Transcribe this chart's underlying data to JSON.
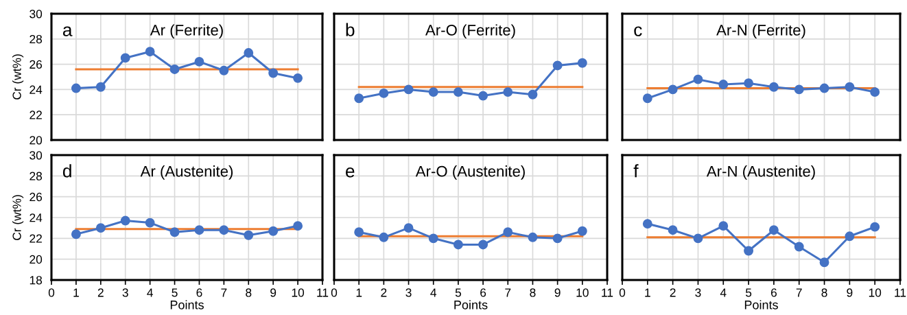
{
  "chart_data": [
    {
      "type": "line",
      "title": "Ar (Ferrite)",
      "annotations": [
        "a"
      ],
      "ylabel": "Cr (wt%)",
      "x": [
        1,
        2,
        3,
        4,
        5,
        6,
        7,
        8,
        9,
        10
      ],
      "xlim": [
        0,
        11
      ],
      "xticks": [
        0,
        1,
        2,
        3,
        4,
        5,
        6,
        7,
        8,
        9,
        10,
        11
      ],
      "ylim": [
        20,
        30
      ],
      "yticks": [
        20,
        22,
        24,
        26,
        28,
        30
      ],
      "tick_labels": "y",
      "grid": true,
      "marker": "circle",
      "line_style": "solid",
      "series": [
        {
          "color": "#4472c4",
          "values": [
            24.1,
            24.2,
            26.5,
            27.0,
            25.6,
            26.2,
            25.5,
            26.9,
            25.3,
            24.9
          ]
        }
      ],
      "ref_lines": [
        {
          "axis": "y",
          "value": 25.6,
          "color": "#ed7d31"
        }
      ]
    },
    {
      "type": "line",
      "title": "Ar-O (Ferrite)",
      "annotations": [
        "b"
      ],
      "x": [
        1,
        2,
        3,
        4,
        5,
        6,
        7,
        8,
        9,
        10
      ],
      "xlim": [
        0,
        11
      ],
      "xticks": [
        0,
        1,
        2,
        3,
        4,
        5,
        6,
        7,
        8,
        9,
        10,
        11
      ],
      "ylim": [
        20,
        30
      ],
      "yticks": [
        20,
        22,
        24,
        26,
        28,
        30
      ],
      "tick_labels": false,
      "grid": true,
      "marker": "circle",
      "line_style": "solid",
      "series": [
        {
          "color": "#4472c4",
          "values": [
            23.3,
            23.7,
            24.0,
            23.8,
            23.8,
            23.5,
            23.8,
            23.6,
            25.9,
            26.1
          ]
        }
      ],
      "ref_lines": [
        {
          "axis": "y",
          "value": 24.2,
          "color": "#ed7d31"
        }
      ]
    },
    {
      "type": "line",
      "title": "Ar-N (Ferrite)",
      "annotations": [
        "c"
      ],
      "x": [
        1,
        2,
        3,
        4,
        5,
        6,
        7,
        8,
        9,
        10
      ],
      "xlim": [
        0,
        11
      ],
      "xticks": [
        0,
        1,
        2,
        3,
        4,
        5,
        6,
        7,
        8,
        9,
        10,
        11
      ],
      "ylim": [
        20,
        30
      ],
      "yticks": [
        20,
        22,
        24,
        26,
        28,
        30
      ],
      "tick_labels": false,
      "grid": true,
      "marker": "circle",
      "line_style": "solid",
      "series": [
        {
          "color": "#4472c4",
          "values": [
            23.3,
            24.0,
            24.8,
            24.4,
            24.5,
            24.2,
            24.0,
            24.1,
            24.2,
            23.8
          ]
        }
      ],
      "ref_lines": [
        {
          "axis": "y",
          "value": 24.1,
          "color": "#ed7d31"
        }
      ]
    },
    {
      "type": "line",
      "title": "Ar (Austenite)",
      "annotations": [
        "d"
      ],
      "xlabel": "Points",
      "ylabel": "Cr (wt%)",
      "x": [
        1,
        2,
        3,
        4,
        5,
        6,
        7,
        8,
        9,
        10
      ],
      "xlim": [
        0,
        11
      ],
      "xticks": [
        0,
        1,
        2,
        3,
        4,
        5,
        6,
        7,
        8,
        9,
        10,
        11
      ],
      "ylim": [
        18,
        30
      ],
      "yticks": [
        18,
        20,
        22,
        24,
        26,
        28,
        30
      ],
      "grid": true,
      "marker": "circle",
      "line_style": "solid",
      "series": [
        {
          "color": "#4472c4",
          "values": [
            22.4,
            23.0,
            23.7,
            23.5,
            22.6,
            22.8,
            22.8,
            22.3,
            22.7,
            23.2
          ]
        }
      ],
      "ref_lines": [
        {
          "axis": "y",
          "value": 22.9,
          "color": "#ed7d31"
        }
      ]
    },
    {
      "type": "line",
      "title": "Ar-O (Austenite)",
      "annotations": [
        "e"
      ],
      "xlabel": "Points",
      "x": [
        1,
        2,
        3,
        4,
        5,
        6,
        7,
        8,
        9,
        10
      ],
      "xlim": [
        0,
        11
      ],
      "xticks": [
        0,
        1,
        2,
        3,
        4,
        5,
        6,
        7,
        8,
        9,
        10,
        11
      ],
      "ylim": [
        18,
        30
      ],
      "yticks": [
        18,
        20,
        22,
        24,
        26,
        28,
        30
      ],
      "tick_labels": "x",
      "grid": true,
      "marker": "circle",
      "line_style": "solid",
      "series": [
        {
          "color": "#4472c4",
          "values": [
            22.6,
            22.1,
            23.0,
            22.0,
            21.4,
            21.4,
            22.6,
            22.1,
            22.0,
            22.7
          ]
        }
      ],
      "ref_lines": [
        {
          "axis": "y",
          "value": 22.2,
          "color": "#ed7d31"
        }
      ]
    },
    {
      "type": "line",
      "title": "Ar-N (Austenite)",
      "annotations": [
        "f"
      ],
      "xlabel": "Points",
      "x": [
        1,
        2,
        3,
        4,
        5,
        6,
        7,
        8,
        9,
        10
      ],
      "xlim": [
        0,
        11
      ],
      "xticks": [
        0,
        1,
        2,
        3,
        4,
        5,
        6,
        7,
        8,
        9,
        10,
        11
      ],
      "ylim": [
        18,
        30
      ],
      "yticks": [
        18,
        20,
        22,
        24,
        26,
        28,
        30
      ],
      "tick_labels": "x",
      "grid": true,
      "marker": "circle",
      "line_style": "solid",
      "series": [
        {
          "color": "#4472c4",
          "values": [
            23.4,
            22.8,
            22.0,
            23.2,
            20.8,
            22.8,
            21.2,
            19.7,
            22.2,
            23.1
          ]
        }
      ],
      "ref_lines": [
        {
          "axis": "y",
          "value": 22.1,
          "color": "#ed7d31"
        }
      ]
    }
  ]
}
